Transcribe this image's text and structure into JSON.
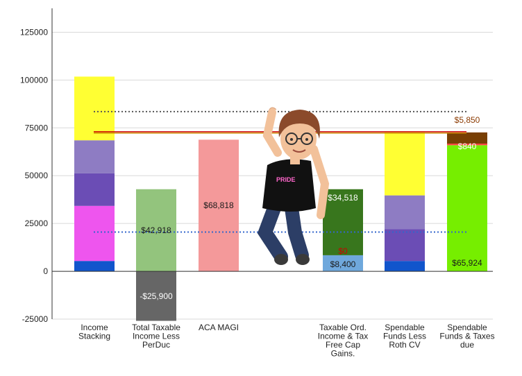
{
  "chart_data": {
    "type": "bar",
    "stacked": true,
    "ylim": [
      -25000,
      137500
    ],
    "yticks": [
      -25000,
      0,
      25000,
      50000,
      75000,
      100000,
      125000
    ],
    "ytick_labels": [
      "-25000",
      "0",
      "25000",
      "50000",
      "75000",
      "100000",
      "125000"
    ],
    "gridlines": true,
    "categories": [
      [
        "Income",
        "Stacking"
      ],
      [
        "Total Taxable",
        "Income Less",
        "PerDuc"
      ],
      [
        "ACA MAGI"
      ],
      [
        ""
      ],
      [
        "Taxable Ord.",
        "Income & Tax",
        "Free Cap",
        "Gains."
      ],
      [
        "Spendable",
        "Funds Less",
        "Roth CV"
      ],
      [
        "Spendable",
        "Funds & Taxes",
        "due"
      ]
    ],
    "bars": [
      {
        "segments": [
          {
            "value": 5400,
            "color": "#1155cc"
          },
          {
            "value": 28800,
            "color": "#ee55ee"
          },
          {
            "value": 17000,
            "color": "#6b4db5"
          },
          {
            "value": 17300,
            "color": "#8e7cc3"
          },
          {
            "value": 33300,
            "color": "#ffff33"
          }
        ]
      },
      {
        "segments": [
          {
            "value": 42918,
            "color": "#93c47d",
            "label": "$42,918",
            "label_color": "#1a1a1a"
          },
          {
            "value": -25900,
            "color": "#666666",
            "label": "-$25,900",
            "label_color": "#ffffff"
          }
        ]
      },
      {
        "segments": [
          {
            "value": 68818,
            "color": "#f4999a",
            "label": "$68,818",
            "label_color": "#1a1a1a"
          }
        ]
      },
      {
        "segments": []
      },
      {
        "segments": [
          {
            "value": 8400,
            "color": "#6fa8dc",
            "label": "$8,400",
            "label_color": "#1a1a1a"
          },
          {
            "value": 0,
            "color": "#ff9900",
            "label": "$0",
            "label_color": "#cc0000"
          },
          {
            "value": 34518,
            "color": "#38761d",
            "label": "$34,518",
            "label_color": "#ffffff"
          }
        ]
      },
      {
        "segments": [
          {
            "value": 5400,
            "color": "#1155cc"
          },
          {
            "value": 16700,
            "color": "#6b4db5"
          },
          {
            "value": 17600,
            "color": "#8e7cc3"
          },
          {
            "value": 33000,
            "color": "#ffff33"
          }
        ]
      },
      {
        "segments": [
          {
            "value": 65924,
            "color": "#76ee00",
            "label": "$65,924",
            "label_color": "#1a1a1a"
          },
          {
            "value": 840,
            "color": "#ff4444",
            "label": "$840",
            "label_color": "#ffffff"
          },
          {
            "value": 5850,
            "color": "#783f04",
            "label": "$5,850",
            "label_color": "#8b3a00"
          }
        ]
      }
    ],
    "reference_lines": [
      {
        "value": 83500,
        "color": "#555555",
        "style": "dotted"
      },
      {
        "value": 73000,
        "color": "#cc0000",
        "style": "solid"
      },
      {
        "value": 72300,
        "color": "#cc8800",
        "style": "solid"
      },
      {
        "value": 20500,
        "color": "#3366cc",
        "style": "dotted"
      }
    ],
    "overlay": "bitmoji-avatar"
  }
}
